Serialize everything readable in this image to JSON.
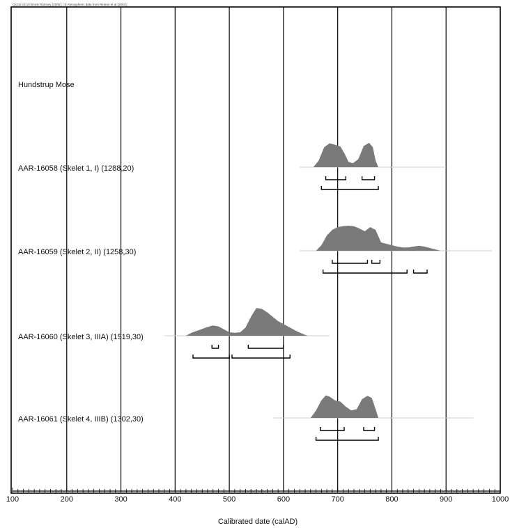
{
  "chart_data": {
    "type": "area",
    "credit": "OxCal v3.10 Bronk Ramsey (2005); r:5 Atmospheric data from Reimer et al (2004);",
    "site": "Hundstrup Mose",
    "xlabel": "Calibrated date (calAD)",
    "ylabel": "",
    "xlim": [
      100,
      1000
    ],
    "x_ticks": [
      100,
      200,
      300,
      400,
      500,
      600,
      700,
      800,
      900,
      1000
    ],
    "grid": true,
    "samples": [
      {
        "label": "AAR-16058 (Skelet 1, I) (1288,20)",
        "tail": [
          630,
          900
        ],
        "density": [
          [
            655,
            0
          ],
          [
            665,
            0.25
          ],
          [
            675,
            0.75
          ],
          [
            685,
            0.9
          ],
          [
            695,
            0.85
          ],
          [
            705,
            0.78
          ],
          [
            713,
            0.5
          ],
          [
            720,
            0.2
          ],
          [
            728,
            0.15
          ],
          [
            738,
            0.3
          ],
          [
            748,
            0.8
          ],
          [
            758,
            0.92
          ],
          [
            765,
            0.75
          ],
          [
            770,
            0.25
          ],
          [
            775,
            0
          ]
        ],
        "ranges_68": [
          [
            678,
            715
          ],
          [
            745,
            768
          ]
        ],
        "ranges_95": [
          [
            670,
            775
          ]
        ]
      },
      {
        "label": "AAR-16059 (Skelet 2, II) (1258,30)",
        "tail": [
          630,
          985
        ],
        "density": [
          [
            660,
            0
          ],
          [
            670,
            0.2
          ],
          [
            680,
            0.55
          ],
          [
            690,
            0.75
          ],
          [
            700,
            0.85
          ],
          [
            710,
            0.88
          ],
          [
            720,
            0.9
          ],
          [
            730,
            0.88
          ],
          [
            740,
            0.8
          ],
          [
            750,
            0.7
          ],
          [
            760,
            0.85
          ],
          [
            770,
            0.75
          ],
          [
            780,
            0.3
          ],
          [
            790,
            0.25
          ],
          [
            800,
            0.2
          ],
          [
            810,
            0.15
          ],
          [
            820,
            0.12
          ],
          [
            830,
            0.12
          ],
          [
            840,
            0.15
          ],
          [
            850,
            0.18
          ],
          [
            860,
            0.15
          ],
          [
            870,
            0.1
          ],
          [
            880,
            0.05
          ],
          [
            890,
            0
          ]
        ],
        "ranges_68": [
          [
            690,
            755
          ],
          [
            763,
            778
          ]
        ],
        "ranges_95": [
          [
            673,
            828
          ],
          [
            840,
            865
          ]
        ]
      },
      {
        "label": "AAR-16060 (Skelet 3, IIIA) (1519,30)",
        "tail": [
          380,
          685
        ],
        "density": [
          [
            420,
            0
          ],
          [
            430,
            0.1
          ],
          [
            445,
            0.2
          ],
          [
            460,
            0.3
          ],
          [
            470,
            0.35
          ],
          [
            480,
            0.32
          ],
          [
            490,
            0.22
          ],
          [
            500,
            0.12
          ],
          [
            510,
            0.1
          ],
          [
            520,
            0.12
          ],
          [
            530,
            0.28
          ],
          [
            540,
            0.65
          ],
          [
            550,
            0.95
          ],
          [
            560,
            0.92
          ],
          [
            570,
            0.8
          ],
          [
            580,
            0.65
          ],
          [
            590,
            0.5
          ],
          [
            600,
            0.4
          ],
          [
            610,
            0.3
          ],
          [
            625,
            0.15
          ],
          [
            640,
            0.03
          ],
          [
            645,
            0
          ]
        ],
        "ranges_68": [
          [
            468,
            480
          ],
          [
            535,
            600
          ]
        ],
        "ranges_95": [
          [
            433,
            500
          ],
          [
            505,
            612
          ]
        ]
      },
      {
        "label": "AAR-16061 (Skelet 4, IIIB) (1302,30)",
        "tail": [
          580,
          950
        ],
        "density": [
          [
            650,
            0
          ],
          [
            660,
            0.3
          ],
          [
            670,
            0.7
          ],
          [
            678,
            0.9
          ],
          [
            685,
            0.85
          ],
          [
            695,
            0.7
          ],
          [
            705,
            0.65
          ],
          [
            715,
            0.45
          ],
          [
            725,
            0.3
          ],
          [
            735,
            0.35
          ],
          [
            745,
            0.75
          ],
          [
            755,
            0.88
          ],
          [
            763,
            0.8
          ],
          [
            770,
            0.35
          ],
          [
            775,
            0
          ]
        ],
        "ranges_68": [
          [
            668,
            712
          ],
          [
            748,
            768
          ]
        ],
        "ranges_95": [
          [
            660,
            775
          ]
        ]
      }
    ]
  }
}
